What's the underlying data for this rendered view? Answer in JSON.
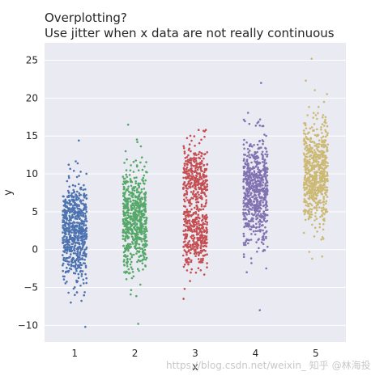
{
  "chart_data": {
    "type": "scatter",
    "title_lines": [
      "Overplotting?",
      "Use jitter when x data are not really continuous"
    ],
    "xlabel": "x",
    "ylabel": "y",
    "x_categories": [
      "1",
      "2",
      "3",
      "4",
      "5"
    ],
    "y_ticks": [
      "−10",
      "−5",
      "0",
      "5",
      "10",
      "15",
      "20",
      "25"
    ],
    "ylim": [
      -12.2,
      27.3
    ],
    "xlim": [
      0.5,
      5.5
    ],
    "grid": true,
    "background": "#eaeaf2",
    "jitter_width": 0.2,
    "series": [
      {
        "x": 1,
        "color": "#4c72b0",
        "mean": 2.5,
        "spread": 3.3,
        "bimodal": false,
        "ymin": -10.2,
        "ymax": 14.4
      },
      {
        "x": 2,
        "color": "#55a868",
        "mean": 4.0,
        "spread": 3.4,
        "bimodal": false,
        "ymin": -9.8,
        "ymax": 16.5
      },
      {
        "x": 3,
        "color": "#c44e52",
        "mean": 5.2,
        "spread": 4.2,
        "bimodal": true,
        "modes": [
          1.8,
          9.5
        ],
        "ymin": -6.5,
        "ymax": 15.8
      },
      {
        "x": 4,
        "color": "#8172b2",
        "mean": 8.0,
        "spread": 3.5,
        "bimodal": false,
        "ymin": -8.0,
        "ymax": 22.0
      },
      {
        "x": 5,
        "color": "#ccb974",
        "mean": 10.0,
        "spread": 3.4,
        "bimodal": false,
        "ymin": -1.2,
        "ymax": 25.2
      }
    ]
  },
  "watermark": "https://blog.csdn.net/weixin_  知乎 @林海投研"
}
